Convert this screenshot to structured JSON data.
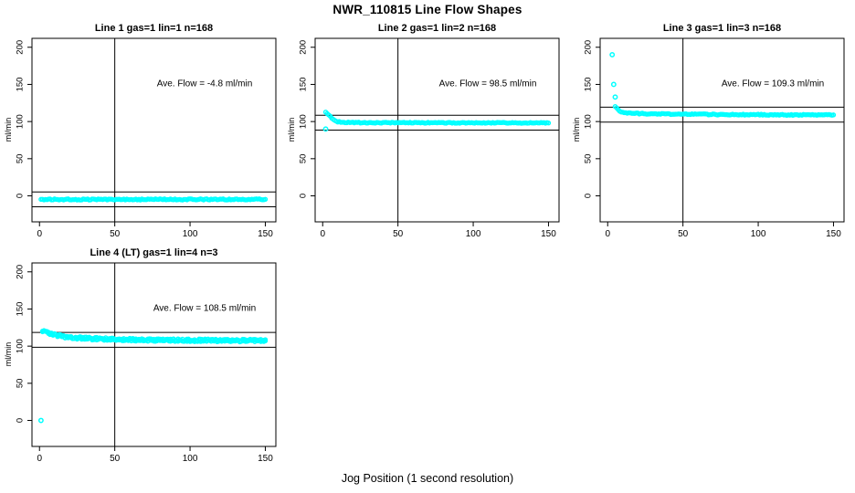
{
  "page": {
    "title": "NWR_110815  Line Flow Shapes",
    "xlabel": "Jog Position (1 second resolution)"
  },
  "chart_data": {
    "type": "scatter",
    "title": "NWR_110815  Line Flow Shapes",
    "xlabel": "Jog Position (1 second resolution)",
    "ylabel": "ml/min",
    "point_color": "#00FFFF",
    "line_color": "#000000",
    "background": "#FFFFFF",
    "xlim": [
      -5,
      157
    ],
    "ylim": [
      -35,
      212
    ],
    "xticks": [
      0,
      50,
      100,
      150
    ],
    "yticks": [
      0,
      50,
      100,
      150,
      200
    ],
    "vline_x": 50,
    "ref_band_halfwidth": 10,
    "legend": "none",
    "grid": false,
    "plots": [
      {
        "title": "Line 1 gas=1 lin=1 n=168",
        "ave_flow": -4.8,
        "ave_flow_label": "Ave. Flow =  -4.8  ml/min",
        "n": 168,
        "ref_lines": [
          5.2,
          -14.8
        ],
        "x_start": 1,
        "x_end": 150,
        "series_keypoints": [
          [
            1,
            -4.8
          ],
          [
            150,
            -4.8
          ]
        ],
        "outliers": [],
        "noise_amp": 0.8,
        "passes": 1
      },
      {
        "title": "Line 2 gas=1 lin=2 n=168",
        "ave_flow": 98.5,
        "ave_flow_label": "Ave. Flow =  98.5  ml/min",
        "n": 168,
        "ref_lines": [
          108.5,
          88.5
        ],
        "x_start": 2,
        "x_end": 150,
        "series_keypoints": [
          [
            2,
            113
          ],
          [
            3,
            111
          ],
          [
            4,
            109
          ],
          [
            5,
            107
          ],
          [
            6,
            105
          ],
          [
            7,
            103
          ],
          [
            8,
            101.5
          ],
          [
            9,
            100.5
          ],
          [
            10,
            99.8
          ],
          [
            12,
            99.2
          ],
          [
            15,
            98.8
          ],
          [
            20,
            98.6
          ],
          [
            30,
            98.5
          ],
          [
            50,
            98.4
          ],
          [
            100,
            98.3
          ],
          [
            150,
            98.2
          ]
        ],
        "outliers": [
          [
            2,
            90
          ]
        ],
        "noise_amp": 0.6,
        "passes": 1
      },
      {
        "title": "Line 3 gas=1 lin=3 n=168",
        "ave_flow": 109.3,
        "ave_flow_label": "Ave. Flow =  109.3  ml/min",
        "n": 168,
        "ref_lines": [
          119.3,
          99.3
        ],
        "x_start": 5,
        "x_end": 150,
        "series_keypoints": [
          [
            5,
            120
          ],
          [
            6,
            118
          ],
          [
            7,
            116
          ],
          [
            8,
            114.5
          ],
          [
            9,
            113.5
          ],
          [
            10,
            112.8
          ],
          [
            12,
            112
          ],
          [
            15,
            111.4
          ],
          [
            20,
            110.8
          ],
          [
            30,
            110.3
          ],
          [
            50,
            109.9
          ],
          [
            75,
            109.5
          ],
          [
            100,
            109.2
          ],
          [
            125,
            109
          ],
          [
            150,
            108.8
          ]
        ],
        "outliers": [
          [
            3,
            190
          ],
          [
            4,
            150
          ],
          [
            5,
            133
          ]
        ],
        "noise_amp": 0.7,
        "passes": 1
      },
      {
        "title": "Line 4 (LT) gas=1 lin=4 n=3",
        "ave_flow": 108.5,
        "ave_flow_label": "Ave. Flow =  108.5  ml/min",
        "n": 3,
        "ref_lines": [
          118.5,
          98.5
        ],
        "x_start": 2,
        "x_end": 150,
        "series_keypoints": [
          [
            2,
            120.5
          ],
          [
            4,
            119
          ],
          [
            6,
            117.5
          ],
          [
            8,
            116.3
          ],
          [
            10,
            115.2
          ],
          [
            13,
            114
          ],
          [
            16,
            113
          ],
          [
            20,
            112
          ],
          [
            25,
            111.2
          ],
          [
            30,
            110.6
          ],
          [
            40,
            109.8
          ],
          [
            50,
            109.2
          ],
          [
            65,
            108.6
          ],
          [
            80,
            108.2
          ],
          [
            100,
            107.9
          ],
          [
            120,
            107.7
          ],
          [
            150,
            107.5
          ]
        ],
        "outliers": [
          [
            1,
            0
          ]
        ],
        "noise_amp": 1.8,
        "passes": 2
      }
    ]
  }
}
